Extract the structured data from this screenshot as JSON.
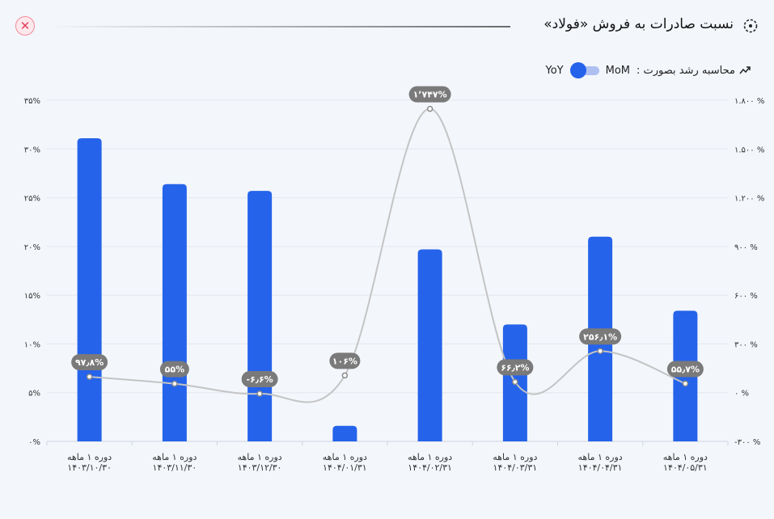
{
  "header": {
    "title": "نسبت صادرات به فروش «فولاد»",
    "close_icon": "close-icon",
    "title_icon": "dashed-circle-icon"
  },
  "controls": {
    "growth_label": "محاسبه رشد بصورت :",
    "option_mom": "MoM",
    "option_yoy": "YoY",
    "selected": "YoY",
    "icon": "trend-arrow-icon"
  },
  "chart_data": {
    "type": "bar",
    "categories": [
      [
        "دوره ۱ ماهه",
        "۱۴۰۳/۱۰/۳۰"
      ],
      [
        "دوره ۱ ماهه",
        "۱۴۰۳/۱۱/۳۰"
      ],
      [
        "دوره ۱ ماهه",
        "۱۴۰۳/۱۲/۳۰"
      ],
      [
        "دوره ۱ ماهه",
        "۱۴۰۴/۰۱/۳۱"
      ],
      [
        "دوره ۱ ماهه",
        "۱۴۰۴/۰۲/۳۱"
      ],
      [
        "دوره ۱ ماهه",
        "۱۴۰۴/۰۳/۳۱"
      ],
      [
        "دوره ۱ ماهه",
        "۱۴۰۴/۰۴/۳۱"
      ],
      [
        "دوره ۱ ماهه",
        "۱۴۰۴/۰۵/۳۱"
      ]
    ],
    "bars": {
      "values": [
        31.1,
        26.4,
        25.7,
        1.6,
        19.7,
        12.0,
        21.0,
        13.4
      ],
      "color": "#2563eb",
      "ylim": [
        0,
        35
      ],
      "ticks": [
        "۰%",
        "۵%",
        "۱۰%",
        "۱۵%",
        "۲۰%",
        "۲۵%",
        "۳۰%",
        "۳۵%"
      ]
    },
    "line": {
      "values": [
        97.8,
        55,
        -6.6,
        106,
        1747,
        66.2,
        256.1,
        55.7
      ],
      "labels": [
        "۹۷٫۸%",
        "۵۵%",
        "-۶٫۶%",
        "۱۰۶%",
        "۱٬۷۴۷%",
        "۶۶٫۲%",
        "۲۵۶٫۱%",
        "۵۵٫۷%"
      ],
      "color": "#c4c4c4",
      "ylim": [
        -300,
        1800
      ],
      "ticks": [
        "-۳۰۰ %",
        "۰ %",
        "۳۰۰ %",
        "۶۰۰ %",
        "۹۰۰ %",
        "۱.۲۰۰ %",
        "۱.۵۰۰ %",
        "۱.۸۰۰ %"
      ]
    },
    "grid": true
  }
}
